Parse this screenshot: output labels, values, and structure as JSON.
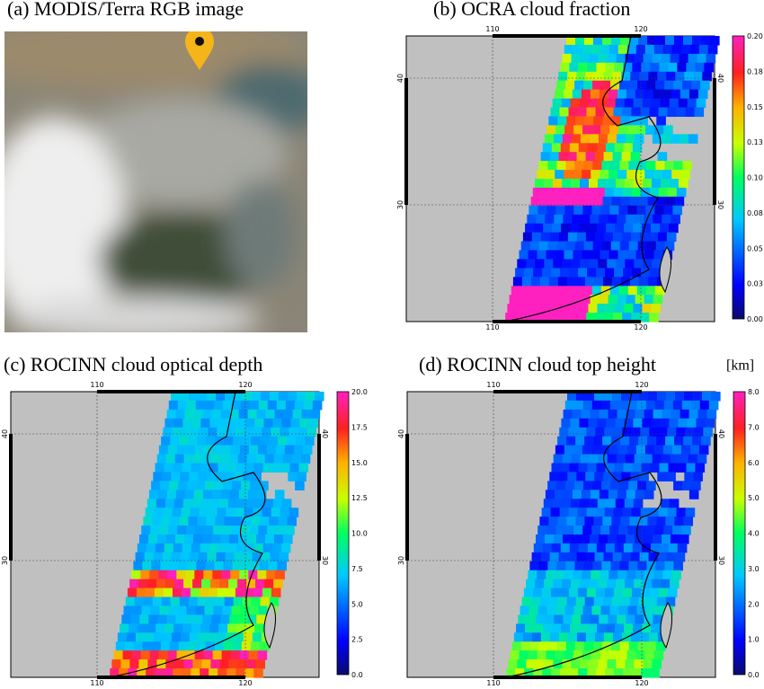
{
  "panels": [
    {
      "title": "(a) MODIS/Terra RGB image"
    },
    {
      "title": "(b) OCRA cloud fraction",
      "lon_labels": [
        "110",
        "120"
      ],
      "lat_labels": [
        "40",
        "30"
      ],
      "colorbar": [
        "0.20",
        "0.18",
        "0.15",
        "0.13",
        "0.10",
        "0.08",
        "0.05",
        "0.03",
        "0.00"
      ]
    },
    {
      "title": "(c) ROCINN cloud optical depth",
      "lon_labels": [
        "110",
        "120"
      ],
      "lat_labels": [
        "40",
        "30"
      ],
      "colorbar": [
        "20.0",
        "17.5",
        "15.0",
        "12.5",
        "10.0",
        "7.5",
        "5.0",
        "2.5",
        "0.0"
      ]
    },
    {
      "title": "(d) ROCINN cloud top height",
      "lon_labels": [
        "110",
        "120"
      ],
      "lat_labels": [
        "40",
        "30"
      ],
      "colorbar": [
        "8.0",
        "7.0",
        "6.0",
        "5.0",
        "4.0",
        "3.0",
        "2.0",
        "1.0",
        "0.0"
      ],
      "unit": "[km]"
    }
  ]
}
